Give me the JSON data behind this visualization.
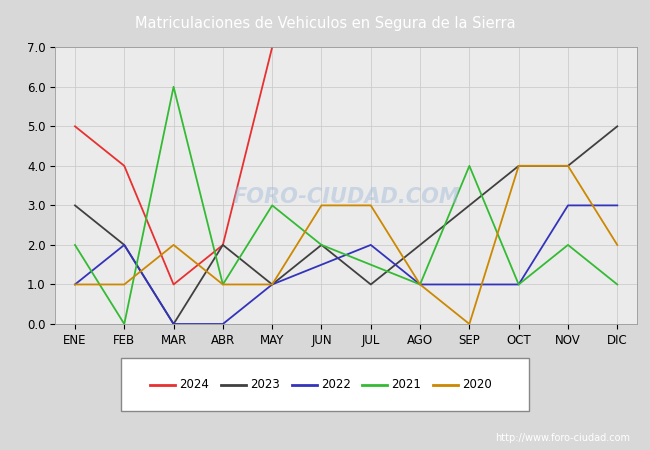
{
  "title": "Matriculaciones de Vehiculos en Segura de la Sierra",
  "header_bg": "#5b7fc4",
  "months": [
    "ENE",
    "FEB",
    "MAR",
    "ABR",
    "MAY",
    "JUN",
    "JUL",
    "AGO",
    "SEP",
    "OCT",
    "NOV",
    "DIC"
  ],
  "series": {
    "2024": {
      "color": "#e83030",
      "data": [
        5.0,
        4.0,
        1.0,
        2.0,
        7.0,
        null,
        null,
        null,
        null,
        null,
        null,
        null
      ]
    },
    "2023": {
      "color": "#404040",
      "data": [
        3.0,
        2.0,
        0.0,
        2.0,
        1.0,
        2.0,
        1.0,
        2.0,
        3.0,
        4.0,
        4.0,
        5.0
      ]
    },
    "2022": {
      "color": "#3333bb",
      "data": [
        1.0,
        2.0,
        0.0,
        0.0,
        1.0,
        1.5,
        2.0,
        1.0,
        1.0,
        1.0,
        3.0,
        3.0
      ]
    },
    "2021": {
      "color": "#33bb33",
      "data": [
        2.0,
        0.0,
        6.0,
        1.0,
        3.0,
        2.0,
        1.5,
        1.0,
        4.0,
        1.0,
        2.0,
        1.0
      ]
    },
    "2020": {
      "color": "#cc8800",
      "data": [
        1.0,
        1.0,
        2.0,
        1.0,
        1.0,
        3.0,
        3.0,
        1.0,
        0.0,
        4.0,
        4.0,
        2.0
      ]
    }
  },
  "ylim": [
    0.0,
    7.0
  ],
  "yticks": [
    0.0,
    1.0,
    2.0,
    3.0,
    4.0,
    5.0,
    6.0,
    7.0
  ],
  "grid_color": "#cccccc",
  "fig_bg": "#d8d8d8",
  "plot_bg": "#ebebeb",
  "watermark_chart": "FORO-CIUDAD.COM",
  "watermark_url": "http://www.foro-ciudad.com",
  "legend_years": [
    "2024",
    "2023",
    "2022",
    "2021",
    "2020"
  ]
}
